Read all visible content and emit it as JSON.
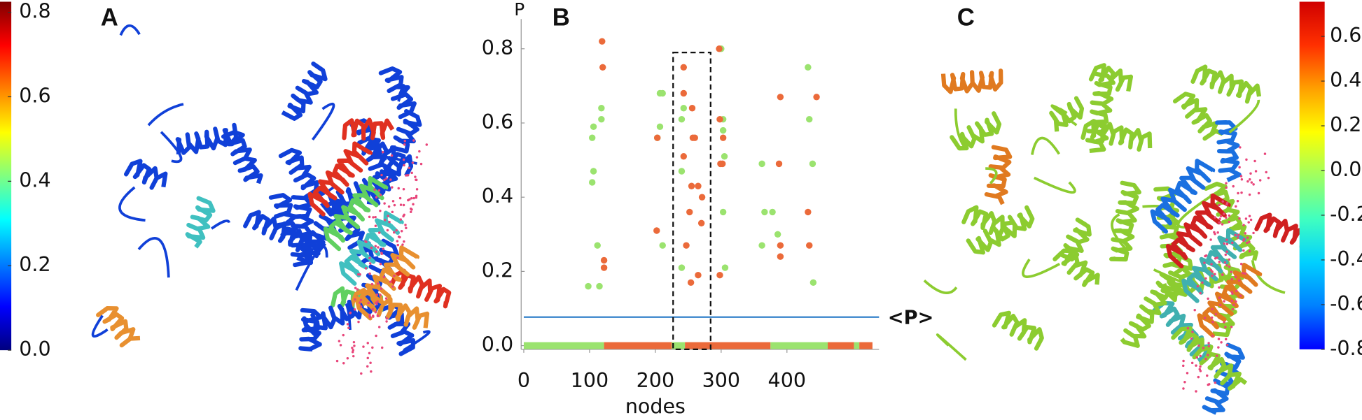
{
  "chart_data": [
    {
      "type": "colorbar",
      "label": "A",
      "colors": [
        "#00007f",
        "#0000ff",
        "#0080ff",
        "#00ffff",
        "#80ff80",
        "#ffff00",
        "#ff8000",
        "#ff0000",
        "#7f0000"
      ],
      "ylim": [
        0,
        0.825
      ],
      "yticks": [
        {
          "value": 0,
          "label": "0.0"
        },
        0.2,
        0.4,
        0.6,
        0.8
      ]
    },
    {
      "type": "scatter",
      "label": "B",
      "x_label": "nodes",
      "y_label": "P",
      "xlim": [
        0,
        540
      ],
      "ylim": [
        -0.01,
        0.88
      ],
      "xticks": [
        0,
        100,
        200,
        300,
        400
      ],
      "yticks": [
        {
          "value": 0,
          "label": "0.0"
        },
        0.2,
        0.4,
        0.6,
        0.8
      ],
      "series": [
        {
          "color": "#9be36f",
          "x": [
            112,
            98,
            106,
            104,
            118,
            118,
            106,
            104,
            115,
            207,
            211,
            207,
            203,
            211,
            243,
            240,
            240,
            240,
            300,
            303,
            303,
            305,
            303,
            306,
            362,
            366,
            362,
            378,
            386,
            432,
            434,
            439,
            440
          ],
          "y": [
            0.27,
            0.16,
            0.59,
            0.56,
            0.64,
            0.61,
            0.47,
            0.44,
            0.16,
            0.68,
            0.68,
            0.59,
            0.56,
            0.27,
            0.64,
            0.61,
            0.47,
            0.21,
            0.8,
            0.61,
            0.58,
            0.51,
            0.36,
            0.21,
            0.49,
            0.36,
            0.27,
            0.36,
            0.3,
            0.75,
            0.61,
            0.49,
            0.17
          ]
        },
        {
          "color": "#eb6a3a",
          "x": [
            119,
            120,
            122,
            122,
            202,
            203,
            243,
            243,
            243,
            247,
            256,
            257,
            260,
            252,
            255,
            265,
            271,
            270,
            254,
            265,
            297,
            298,
            303,
            299,
            302,
            298,
            390,
            388,
            390,
            390,
            432,
            434,
            445
          ],
          "y": [
            0.82,
            0.75,
            0.23,
            0.21,
            0.31,
            0.56,
            0.75,
            0.68,
            0.51,
            0.27,
            0.64,
            0.56,
            0.56,
            0.36,
            0.43,
            0.43,
            0.4,
            0.33,
            0.17,
            0.19,
            0.8,
            0.61,
            0.56,
            0.49,
            0.49,
            0.19,
            0.67,
            0.49,
            0.27,
            0.24,
            0.36,
            0.27,
            0.67
          ]
        }
      ],
      "strips": {
        "starts": [
          0,
          122,
          225,
          245,
          375,
          462,
          502,
          510
        ],
        "ends": [
          122,
          225,
          245,
          375,
          462,
          502,
          510,
          530
        ],
        "colors": [
          "#9be36f",
          "#eb6a3a",
          "#9be36f",
          "#eb6a3a",
          "#9be36f",
          "#eb6a3a",
          "#9be36f",
          "#eb6a3a"
        ]
      },
      "mean_line": {
        "value": 0.077,
        "label": "<P>",
        "color": "#4a8fd0"
      },
      "highlight": {
        "x": [
          227,
          284
        ],
        "y": [
          -0.01,
          0.79
        ]
      }
    },
    {
      "type": "colorbar",
      "label": "C",
      "colors": [
        "#0000ff",
        "#0080ff",
        "#00d0ff",
        "#40ffc0",
        "#a0ff60",
        "#ffff00",
        "#ffa000",
        "#ff3000",
        "#d00000"
      ],
      "ylim": [
        -0.8,
        0.755
      ],
      "yticks": [
        -0.8,
        -0.6,
        -0.4,
        -0.2,
        {
          "value": 0,
          "label": "0.0"
        },
        0.2,
        0.4,
        0.6
      ]
    }
  ]
}
